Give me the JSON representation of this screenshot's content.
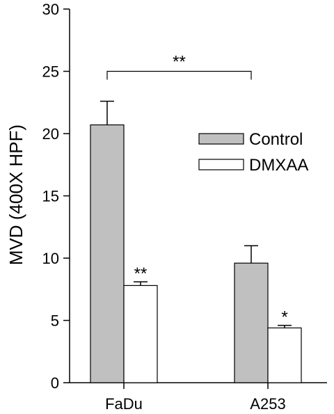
{
  "chart_data": {
    "type": "bar",
    "title": "",
    "xlabel": "",
    "ylabel": "MVD (400X HPF)",
    "ylim": [
      0,
      30
    ],
    "yticks": [
      0,
      5,
      10,
      15,
      20,
      25,
      30
    ],
    "categories": [
      "FaDu",
      "A253"
    ],
    "series": [
      {
        "name": "Control",
        "values": [
          20.7,
          9.6
        ],
        "errors": [
          1.9,
          1.4
        ],
        "color": "#c0c0c0"
      },
      {
        "name": "DMXAA",
        "values": [
          7.8,
          4.4
        ],
        "errors": [
          0.3,
          0.2
        ],
        "color": "#ffffff"
      }
    ],
    "bar_significance": [
      [
        "",
        ""
      ],
      [
        "**",
        "*"
      ]
    ],
    "bracket": {
      "label": "**",
      "from_category": 0,
      "to_category": 1,
      "series": 0,
      "y": 25
    },
    "legend": "upper-right",
    "grid": false
  }
}
